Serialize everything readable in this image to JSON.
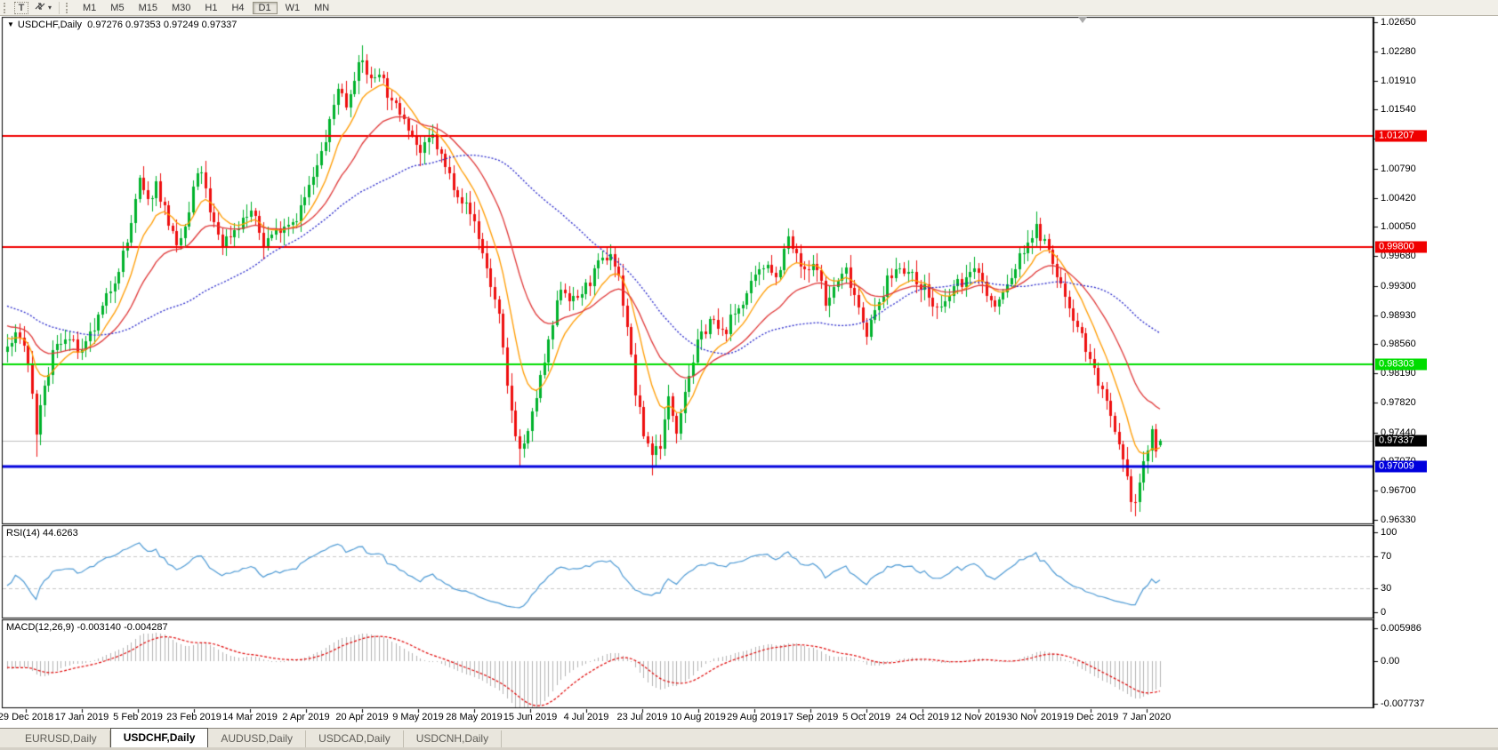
{
  "toolbar": {
    "text_tool_label": "T",
    "pointer_tool_caret": "▾",
    "timeframes": [
      {
        "label": "M1",
        "active": false
      },
      {
        "label": "M5",
        "active": false
      },
      {
        "label": "M15",
        "active": false
      },
      {
        "label": "M30",
        "active": false
      },
      {
        "label": "H1",
        "active": false
      },
      {
        "label": "H4",
        "active": false
      },
      {
        "label": "D1",
        "active": true
      },
      {
        "label": "W1",
        "active": false
      },
      {
        "label": "MN",
        "active": false
      }
    ]
  },
  "chart": {
    "symbol_header": "USDCHF,Daily",
    "ohlc": {
      "open": "0.97276",
      "high": "0.97353",
      "low": "0.97249",
      "close": "0.97337"
    },
    "y_axis_ticks": [
      "1.02650",
      "1.02280",
      "1.01910",
      "1.01540",
      "1.01170",
      "1.00790",
      "1.00420",
      "1.00050",
      "0.99680",
      "0.99300",
      "0.98930",
      "0.98560",
      "0.98190",
      "0.97820",
      "0.97440",
      "0.97070",
      "0.96700",
      "0.96330"
    ],
    "price_lines": [
      {
        "value": "1.01207",
        "color": "#f00000",
        "width": 2
      },
      {
        "value": "0.99800",
        "color": "#f00000",
        "width": 2
      },
      {
        "value": "0.98303",
        "color": "#00dd00",
        "width": 2
      },
      {
        "value": "0.97009",
        "color": "#0000dd",
        "width": 3
      }
    ],
    "current_price": {
      "value": "0.97337",
      "line_color": "#c0c0c0",
      "box_color": "#000000"
    },
    "x_axis_labels": [
      "29 Dec 2018",
      "17 Jan 2019",
      "5 Feb 2019",
      "23 Feb 2019",
      "14 Mar 2019",
      "2 Apr 2019",
      "20 Apr 2019",
      "9 May 2019",
      "28 May 2019",
      "15 Jun 2019",
      "4 Jul 2019",
      "23 Jul 2019",
      "10 Aug 2019",
      "29 Aug 2019",
      "17 Sep 2019",
      "5 Oct 2019",
      "24 Oct 2019",
      "12 Nov 2019",
      "30 Nov 2019",
      "19 Dec 2019",
      "7 Jan 2020"
    ],
    "colors": {
      "up": "#00b22c",
      "down": "#ee0f0f",
      "background": "#ffffff",
      "border": "#000000"
    }
  },
  "rsi": {
    "label": "RSI(14) 44.6263",
    "value": "44.6263",
    "ticks": [
      "100",
      "70",
      "30",
      "0"
    ],
    "levels": [
      70,
      30
    ],
    "line_color": "#4f9bd5",
    "level_color": "#c8c8c8"
  },
  "macd": {
    "label": "MACD(12,26,9) -0.003140 -0.004287",
    "main_value": "-0.003140",
    "signal_value": "-0.004287",
    "ticks": [
      "0.005986",
      "0.00",
      "-0.007737"
    ],
    "hist_color": "#b4b4b4",
    "signal_color": "#e00000"
  },
  "tabs": [
    {
      "label": "EURUSD,Daily",
      "active": false
    },
    {
      "label": "USDCHF,Daily",
      "active": true
    },
    {
      "label": "AUDUSD,Daily",
      "active": false
    },
    {
      "label": "USDCAD,Daily",
      "active": false
    },
    {
      "label": "USDCNH,Daily",
      "active": false
    }
  ],
  "chart_data": {
    "type": "candlestick",
    "symbol": "USDCHF",
    "timeframe": "Daily",
    "bars": 280,
    "ylim": [
      0.9633,
      1.0265
    ],
    "last_bar": {
      "open": 0.97276,
      "high": 0.97353,
      "low": 0.97249,
      "close": 0.97337
    },
    "moving_averages": [
      {
        "period": 10,
        "type": "ema",
        "color": "#ff9c00"
      },
      {
        "period": 25,
        "type": "ema",
        "color": "#e03838"
      },
      {
        "period": 55,
        "type": "sma",
        "color": "#2828cc",
        "dash": [
          2,
          2
        ]
      }
    ],
    "rsi_period": 14,
    "macd_params": [
      12,
      26,
      9
    ],
    "close_anchors": [
      [
        0,
        0.9852
      ],
      [
        3,
        0.987
      ],
      [
        5,
        0.9835
      ],
      [
        6,
        0.979
      ],
      [
        7,
        0.9745
      ],
      [
        8,
        0.9772
      ],
      [
        11,
        0.9845
      ],
      [
        14,
        0.9868
      ],
      [
        18,
        0.9842
      ],
      [
        22,
        0.9888
      ],
      [
        26,
        0.994
      ],
      [
        29,
        0.9985
      ],
      [
        32,
        1.0062
      ],
      [
        34,
        1.0035
      ],
      [
        36,
        1.006
      ],
      [
        39,
        1.0012
      ],
      [
        41,
        0.9975
      ],
      [
        44,
        1.002
      ],
      [
        45,
        1.0055
      ],
      [
        47,
        1.0078
      ],
      [
        49,
        1.002
      ],
      [
        52,
        0.9985
      ],
      [
        56,
        1.0008
      ],
      [
        59,
        1.0025
      ],
      [
        62,
        0.9985
      ],
      [
        66,
        1.0005
      ],
      [
        70,
        1.0018
      ],
      [
        72,
        1.0042
      ],
      [
        75,
        1.008
      ],
      [
        78,
        1.0135
      ],
      [
        80,
        1.0185
      ],
      [
        82,
        1.016
      ],
      [
        84,
        1.0198
      ],
      [
        86,
        1.0215
      ],
      [
        88,
        1.019
      ],
      [
        90,
        1.0205
      ],
      [
        93,
        1.016
      ],
      [
        96,
        1.0148
      ],
      [
        100,
        1.0098
      ],
      [
        103,
        1.012
      ],
      [
        106,
        1.008
      ],
      [
        110,
        1.004
      ],
      [
        113,
        1.0012
      ],
      [
        116,
        0.9952
      ],
      [
        119,
        0.989
      ],
      [
        121,
        0.98
      ],
      [
        123,
        0.9745
      ],
      [
        124,
        0.9722
      ],
      [
        126,
        0.974
      ],
      [
        128,
        0.979
      ],
      [
        131,
        0.9855
      ],
      [
        134,
        0.993
      ],
      [
        137,
        0.991
      ],
      [
        140,
        0.9928
      ],
      [
        143,
        0.9955
      ],
      [
        146,
        0.9972
      ],
      [
        148,
        0.994
      ],
      [
        150,
        0.988
      ],
      [
        152,
        0.9795
      ],
      [
        154,
        0.9742
      ],
      [
        156,
        0.9718
      ],
      [
        158,
        0.973
      ],
      [
        160,
        0.9785
      ],
      [
        162,
        0.975
      ],
      [
        164,
        0.98
      ],
      [
        167,
        0.9855
      ],
      [
        170,
        0.9888
      ],
      [
        173,
        0.9868
      ],
      [
        176,
        0.9895
      ],
      [
        179,
        0.992
      ],
      [
        181,
        0.9938
      ],
      [
        184,
        0.9962
      ],
      [
        186,
        0.994
      ],
      [
        189,
        0.999
      ],
      [
        191,
        0.9965
      ],
      [
        193,
        0.9945
      ],
      [
        196,
        0.9958
      ],
      [
        198,
        0.9905
      ],
      [
        200,
        0.9928
      ],
      [
        203,
        0.995
      ],
      [
        205,
        0.992
      ],
      [
        208,
        0.9872
      ],
      [
        210,
        0.9895
      ],
      [
        213,
        0.9935
      ],
      [
        216,
        0.9958
      ],
      [
        219,
        0.994
      ],
      [
        222,
        0.9928
      ],
      [
        224,
        0.9905
      ],
      [
        226,
        0.9898
      ],
      [
        229,
        0.9928
      ],
      [
        232,
        0.994
      ],
      [
        235,
        0.9952
      ],
      [
        237,
        0.9918
      ],
      [
        239,
        0.9902
      ],
      [
        242,
        0.993
      ],
      [
        245,
        0.9965
      ],
      [
        247,
        0.9988
      ],
      [
        249,
        1.0002
      ],
      [
        251,
        0.9985
      ],
      [
        253,
        0.9958
      ],
      [
        255,
        0.993
      ],
      [
        257,
        0.9905
      ],
      [
        259,
        0.988
      ],
      [
        261,
        0.9852
      ],
      [
        263,
        0.9822
      ],
      [
        265,
        0.9795
      ],
      [
        267,
        0.9758
      ],
      [
        269,
        0.9722
      ],
      [
        271,
        0.9682
      ],
      [
        272,
        0.9662
      ],
      [
        273,
        0.9655
      ],
      [
        274,
        0.968
      ],
      [
        275,
        0.9703
      ],
      [
        276,
        0.9722
      ],
      [
        277,
        0.9748
      ],
      [
        278,
        0.9712
      ],
      [
        279,
        0.97337
      ]
    ],
    "overrides": {
      "7": {
        "low": 0.9713
      },
      "86": {
        "high": 1.0236
      },
      "124": {
        "low": 0.97
      },
      "156": {
        "low": 0.969
      },
      "273": {
        "low": 0.9638
      },
      "279": {
        "open": 0.97276,
        "high": 0.97353,
        "low": 0.97249,
        "close": 0.97337
      }
    }
  }
}
